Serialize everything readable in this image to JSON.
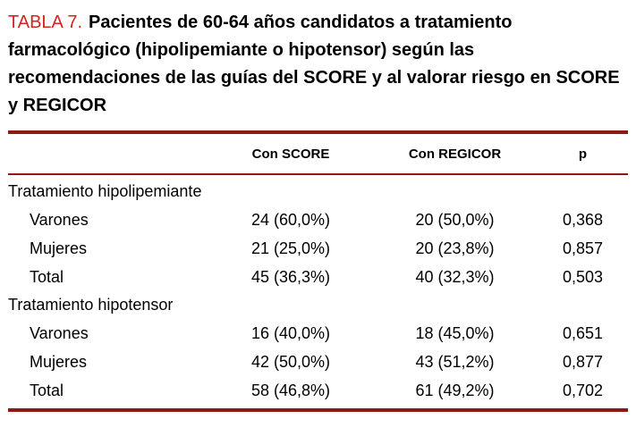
{
  "title": {
    "label": "TABLA 7.",
    "text": "Pacientes de 60-64 años candidatos a tratamiento farmacológico (hipolipemiante o hipotensor) según las recomendaciones de las guías del SCORE y al valorar riesgo en SCORE y REGICOR"
  },
  "colors": {
    "accent_red": "#d6231e",
    "rule_maroon": "#8e1b12"
  },
  "table": {
    "columns": [
      "",
      "Con SCORE",
      "Con REGICOR",
      "p"
    ],
    "sections": [
      {
        "header": "Tratamiento hipolipemiante",
        "rows": [
          {
            "label": "Varones",
            "score": "24 (60,0%)",
            "regicor": "20 (50,0%)",
            "p": "0,368"
          },
          {
            "label": "Mujeres",
            "score": "21 (25,0%)",
            "regicor": "20 (23,8%)",
            "p": "0,857"
          },
          {
            "label": "Total",
            "score": "45 (36,3%)",
            "regicor": "40 (32,3%)",
            "p": "0,503"
          }
        ]
      },
      {
        "header": "Tratamiento hipotensor",
        "rows": [
          {
            "label": "Varones",
            "score": "16 (40,0%)",
            "regicor": "18 (45,0%)",
            "p": "0,651"
          },
          {
            "label": "Mujeres",
            "score": "42 (50,0%)",
            "regicor": "43 (51,2%)",
            "p": "0,877"
          },
          {
            "label": "Total",
            "score": "58 (46,8%)",
            "regicor": "61 (49,2%)",
            "p": "0,702"
          }
        ]
      }
    ]
  }
}
